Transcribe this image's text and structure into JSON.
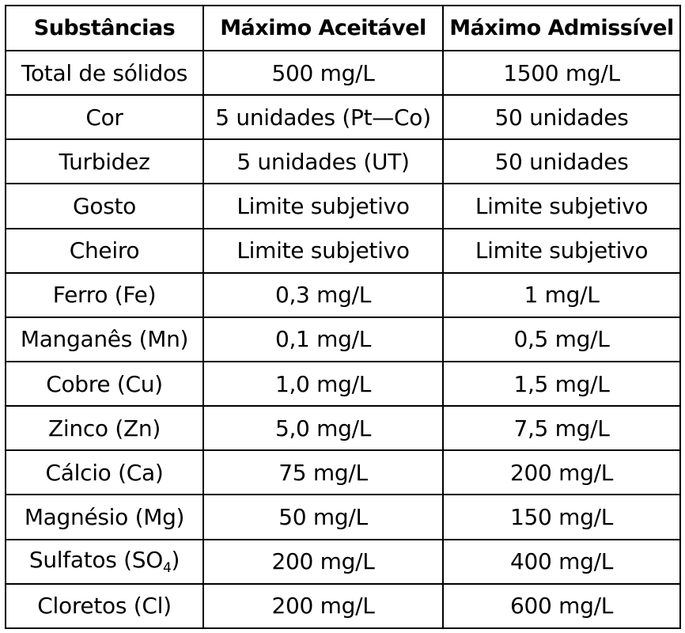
{
  "table": {
    "headers": [
      "Substâncias",
      "Máximo Aceitável",
      "Máximo Admissível"
    ],
    "rows": [
      {
        "substance": "Total de sólidos",
        "acceptable": "500 mg/L",
        "admissible": "1500 mg/L"
      },
      {
        "substance": "Cor",
        "acceptable": "5 unidades (Pt—Co)",
        "admissible": "50 unidades"
      },
      {
        "substance": "Turbidez",
        "acceptable": "5 unidades (UT)",
        "admissible": "50 unidades"
      },
      {
        "substance": "Gosto",
        "acceptable": "Limite subjetivo",
        "admissible": "Limite subjetivo"
      },
      {
        "substance": "Cheiro",
        "acceptable": "Limite subjetivo",
        "admissible": "Limite subjetivo"
      },
      {
        "substance": "Ferro (Fe)",
        "acceptable": "0,3 mg/L",
        "admissible": "1 mg/L"
      },
      {
        "substance": "Manganês (Mn)",
        "acceptable": "0,1 mg/L",
        "admissible": "0,5 mg/L"
      },
      {
        "substance": "Cobre (Cu)",
        "acceptable": "1,0 mg/L",
        "admissible": "1,5 mg/L"
      },
      {
        "substance": "Zinco (Zn)",
        "acceptable": "5,0 mg/L",
        "admissible": "7,5 mg/L"
      },
      {
        "substance": "Cálcio (Ca)",
        "acceptable": "75 mg/L",
        "admissible": "200 mg/L"
      },
      {
        "substance": "Magnésio (Mg)",
        "acceptable": "50 mg/L",
        "admissible": "150 mg/L"
      },
      {
        "substance_prefix": "Sulfatos (SO",
        "substance_subscript": "4",
        "substance_suffix": ")",
        "acceptable": "200 mg/L",
        "admissible": "400 mg/L"
      },
      {
        "substance": "Cloretos (Cl)",
        "acceptable": "200 mg/L",
        "admissible": "600 mg/L"
      }
    ]
  }
}
